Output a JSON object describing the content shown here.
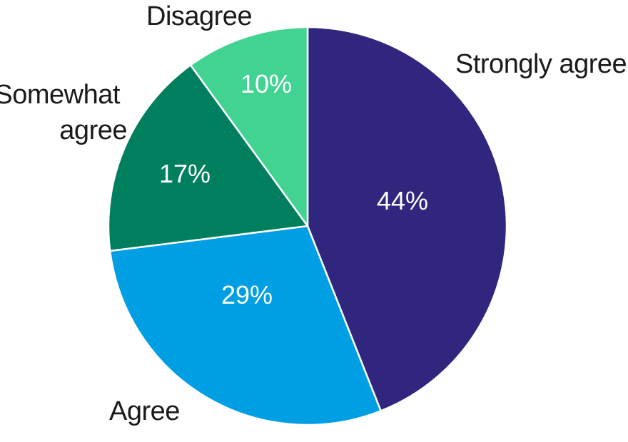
{
  "chart_data": {
    "type": "pie",
    "title": "",
    "start": "12 o'clock",
    "direction": "clockwise",
    "slices": [
      {
        "category": "Strongly agree",
        "value": 44,
        "label": "44%",
        "color": "#31267e"
      },
      {
        "category": "Agree",
        "value": 29,
        "label": "29%",
        "color": "#009fe3"
      },
      {
        "category": "Somewhat agree",
        "value": 17,
        "label": "17%",
        "color": "#007f5f"
      },
      {
        "category": "Disagree",
        "value": 10,
        "label": "10%",
        "color": "#42d393"
      }
    ],
    "slice_border_color": "#ffffff"
  }
}
